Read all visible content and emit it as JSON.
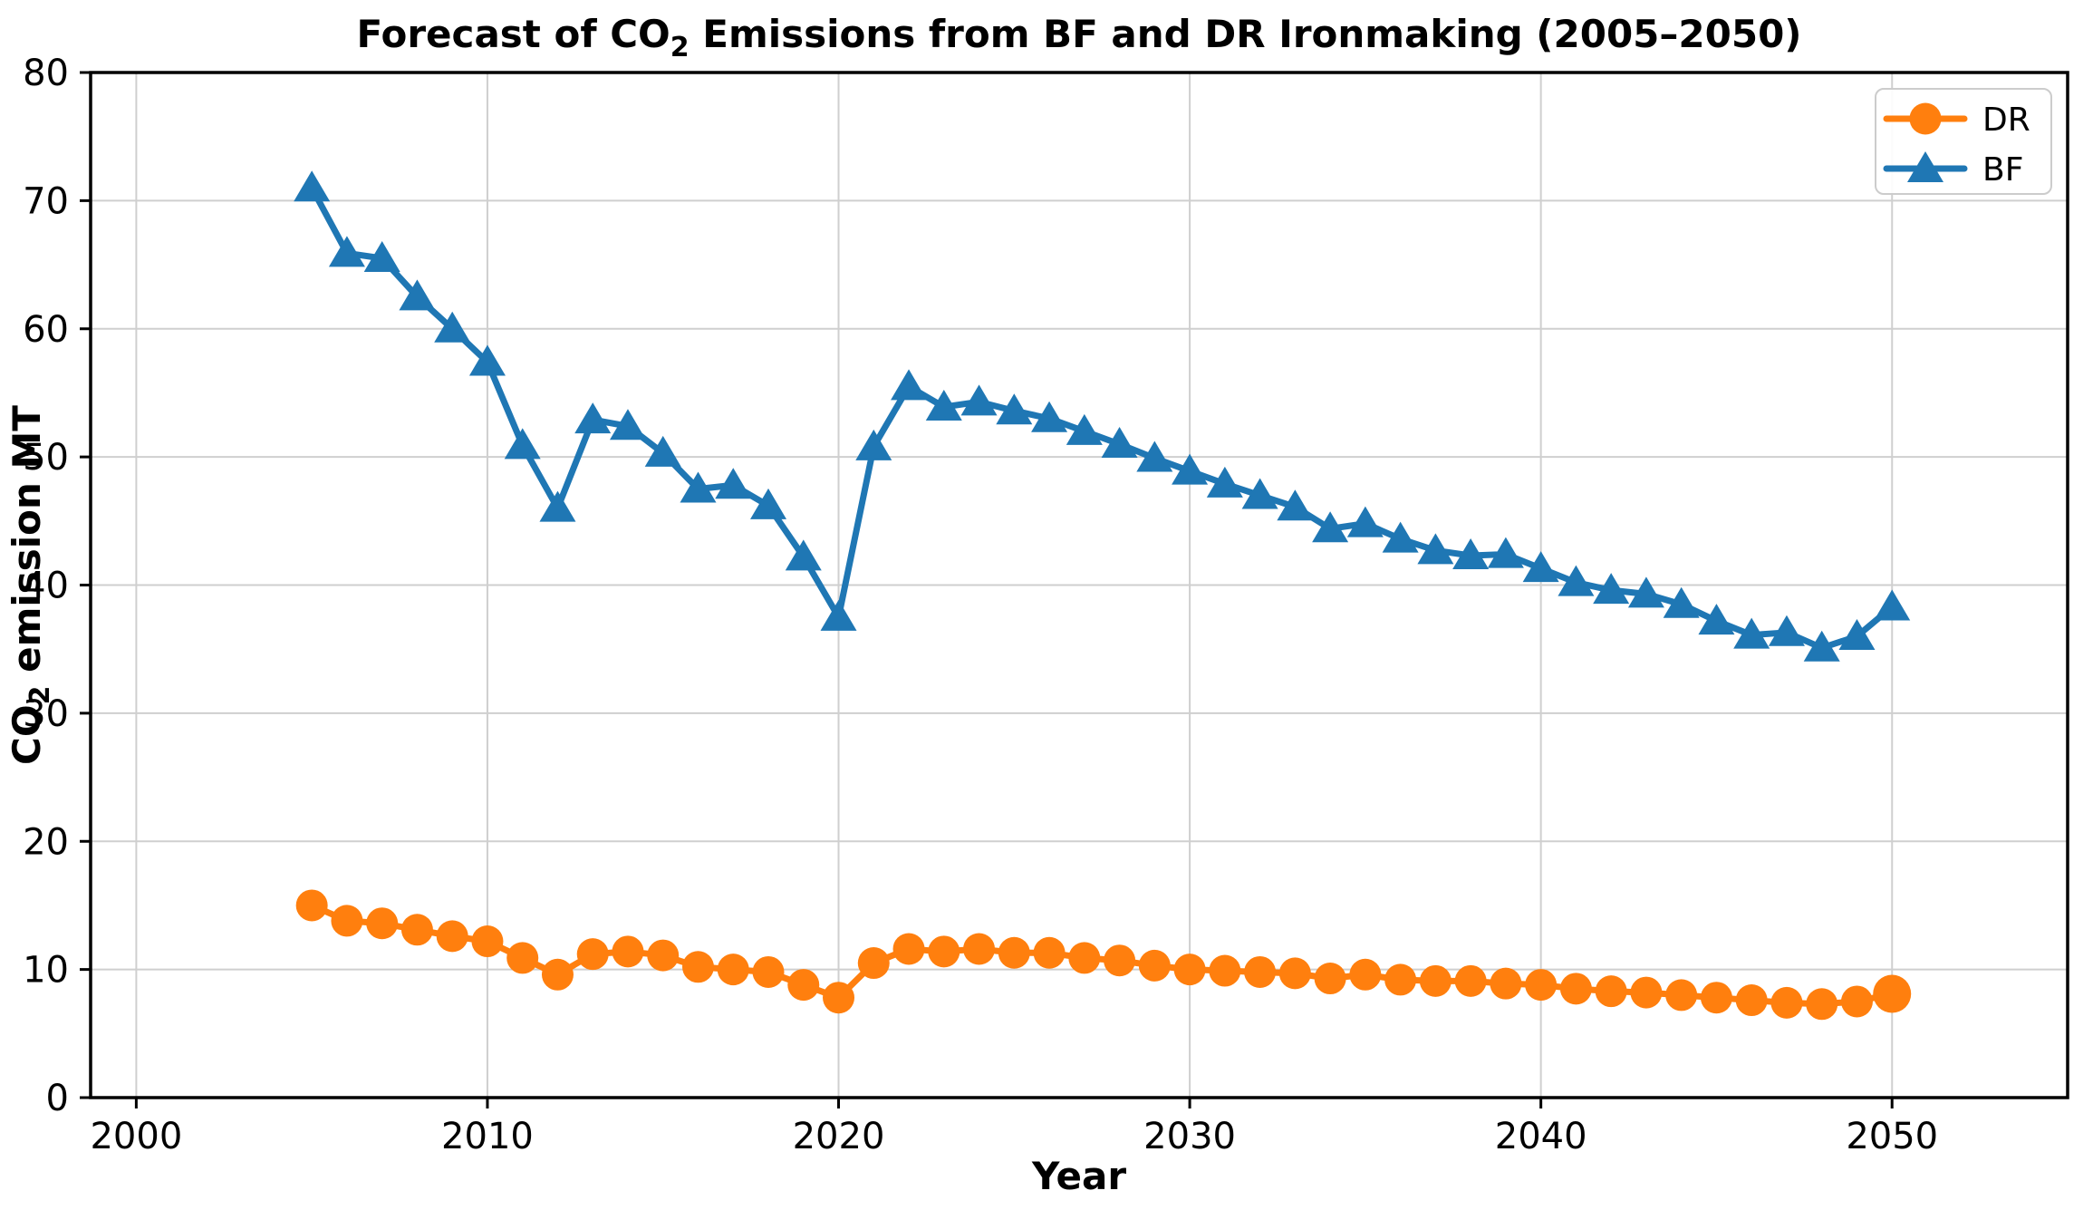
{
  "figure": {
    "title_pre": "Forecast of CO",
    "title_sub": "2",
    "title_post": " Emissions from BF and DR Ironmaking (2005–2050)",
    "x_label": "Year",
    "y_label_pre": "CO",
    "y_label_sub": "2",
    "y_label_post": " emission MT",
    "background_color": "#ffffff",
    "grid_color": "#cfcfcf",
    "spine_color": "#000000",
    "legend": {
      "position": "upper right",
      "border_color": "#cccccc",
      "entries": [
        {
          "label": "DR",
          "color": "#ff7f0e",
          "marker": "circle"
        },
        {
          "label": "BF",
          "color": "#1f77b4",
          "marker": "triangle-up"
        }
      ]
    }
  },
  "chart_data": {
    "type": "line",
    "title": "Forecast of CO2 Emissions from BF and DR Ironmaking (2005–2050)",
    "xlabel": "Year",
    "ylabel": "CO2 emission MT",
    "xlim": [
      1998.7,
      2055.0
    ],
    "ylim": [
      0,
      80
    ],
    "xticks": [
      2000,
      2010,
      2020,
      2030,
      2040,
      2050
    ],
    "yticks": [
      0,
      10,
      20,
      30,
      40,
      50,
      60,
      70,
      80
    ],
    "grid": true,
    "legend_position": "upper right",
    "x": [
      2005,
      2006,
      2007,
      2008,
      2009,
      2010,
      2011,
      2012,
      2013,
      2014,
      2015,
      2016,
      2017,
      2018,
      2019,
      2020,
      2021,
      2022,
      2023,
      2024,
      2025,
      2026,
      2027,
      2028,
      2029,
      2030,
      2031,
      2032,
      2033,
      2034,
      2035,
      2036,
      2037,
      2038,
      2039,
      2040,
      2041,
      2042,
      2043,
      2044,
      2045,
      2046,
      2047,
      2048,
      2049,
      2050
    ],
    "series": [
      {
        "name": "DR",
        "color": "#ff7f0e",
        "marker": "circle",
        "last_marker_scale": 1.2,
        "values": [
          15.0,
          13.8,
          13.6,
          13.1,
          12.6,
          12.2,
          10.9,
          9.6,
          11.2,
          11.4,
          11.1,
          10.2,
          10.0,
          9.8,
          8.8,
          7.8,
          10.5,
          11.6,
          11.4,
          11.6,
          11.3,
          11.3,
          10.9,
          10.7,
          10.3,
          10.0,
          9.9,
          9.8,
          9.7,
          9.3,
          9.6,
          9.2,
          9.1,
          9.1,
          8.9,
          8.8,
          8.5,
          8.3,
          8.2,
          8.0,
          7.8,
          7.6,
          7.4,
          7.3,
          7.5,
          8.1
        ]
      },
      {
        "name": "BF",
        "color": "#1f77b4",
        "marker": "triangle-up",
        "last_marker_scale": 1.0,
        "values": [
          71.0,
          65.9,
          65.5,
          62.5,
          60.0,
          57.4,
          50.9,
          46.0,
          52.9,
          52.4,
          50.3,
          47.5,
          47.8,
          46.2,
          42.2,
          37.5,
          50.8,
          55.5,
          53.9,
          54.3,
          53.6,
          53.0,
          52.0,
          51.0,
          49.9,
          48.9,
          47.9,
          47.0,
          46.1,
          44.4,
          44.8,
          43.6,
          42.7,
          42.3,
          42.4,
          41.3,
          40.2,
          39.6,
          39.3,
          38.5,
          37.2,
          36.1,
          36.3,
          35.1,
          36.0,
          38.3
        ]
      }
    ]
  }
}
